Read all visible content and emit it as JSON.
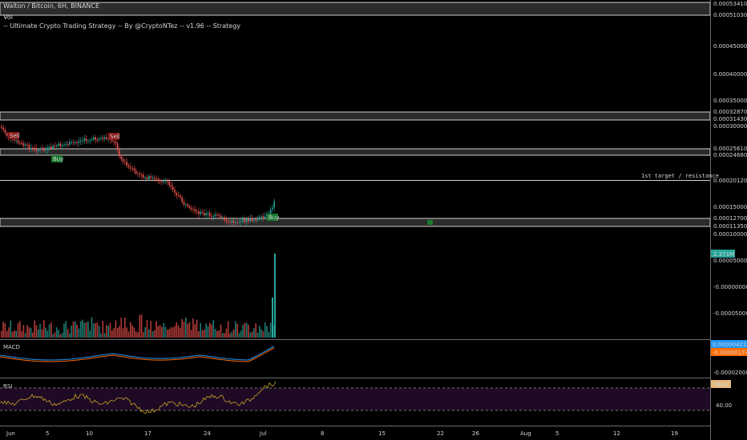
{
  "header": {
    "symbol": "Walton / Bitcoin, 6H, BINANCE",
    "indicator_vol": "Vol",
    "strategy": "-- Ultimate Crypto Trading Strategy -- By @CryptoNTez -- v1.96 -- Strategy"
  },
  "price_axis": {
    "ticks": [
      "0.00053410",
      "0.00051030",
      "0.00045000",
      "0.00040000",
      "0.00035000",
      "0.00032870",
      "0.00031430",
      "0.00030000",
      "0.00025610",
      "0.00024680",
      "0.00020120",
      "0.00015000",
      "0.00012700",
      "0.00011350",
      "0.00010000",
      "0.00005000",
      "-0.00000000",
      "-0.00005000"
    ]
  },
  "price_markers": {
    "vol_badge": "2.371M",
    "macd_line": "0.00000421",
    "macd_signal": "-0.00000174",
    "macd_tick": "-0.00002000",
    "rsi_value": "76.87",
    "rsi_tick": "40.00"
  },
  "annotations": {
    "target": "1st target / resistance",
    "signals": [
      {
        "label": "Sell",
        "type": "sell"
      },
      {
        "label": "Sell",
        "type": "sell"
      },
      {
        "label": "Buy",
        "type": "buy"
      },
      {
        "label": "Buy",
        "type": "buy"
      }
    ]
  },
  "panes": {
    "macd_label": "MACD",
    "rsi_label": "RSI"
  },
  "time_axis": {
    "labels": [
      "Jun",
      "5",
      "10",
      "17",
      "24",
      "Jul",
      "8",
      "15",
      "22",
      "26",
      "Aug",
      "5",
      "12",
      "19"
    ]
  },
  "colors": {
    "background": "#000000",
    "up": "#26a69a",
    "down": "#ef5350",
    "macd": "#2196f3",
    "signal": "#ff6d00",
    "rsi": "#c9a227",
    "zone_fill": "#3a3a3a",
    "rsi_band": "#1e0a24",
    "buy": "#1b7a2f",
    "sell": "#8b1a1a"
  }
}
